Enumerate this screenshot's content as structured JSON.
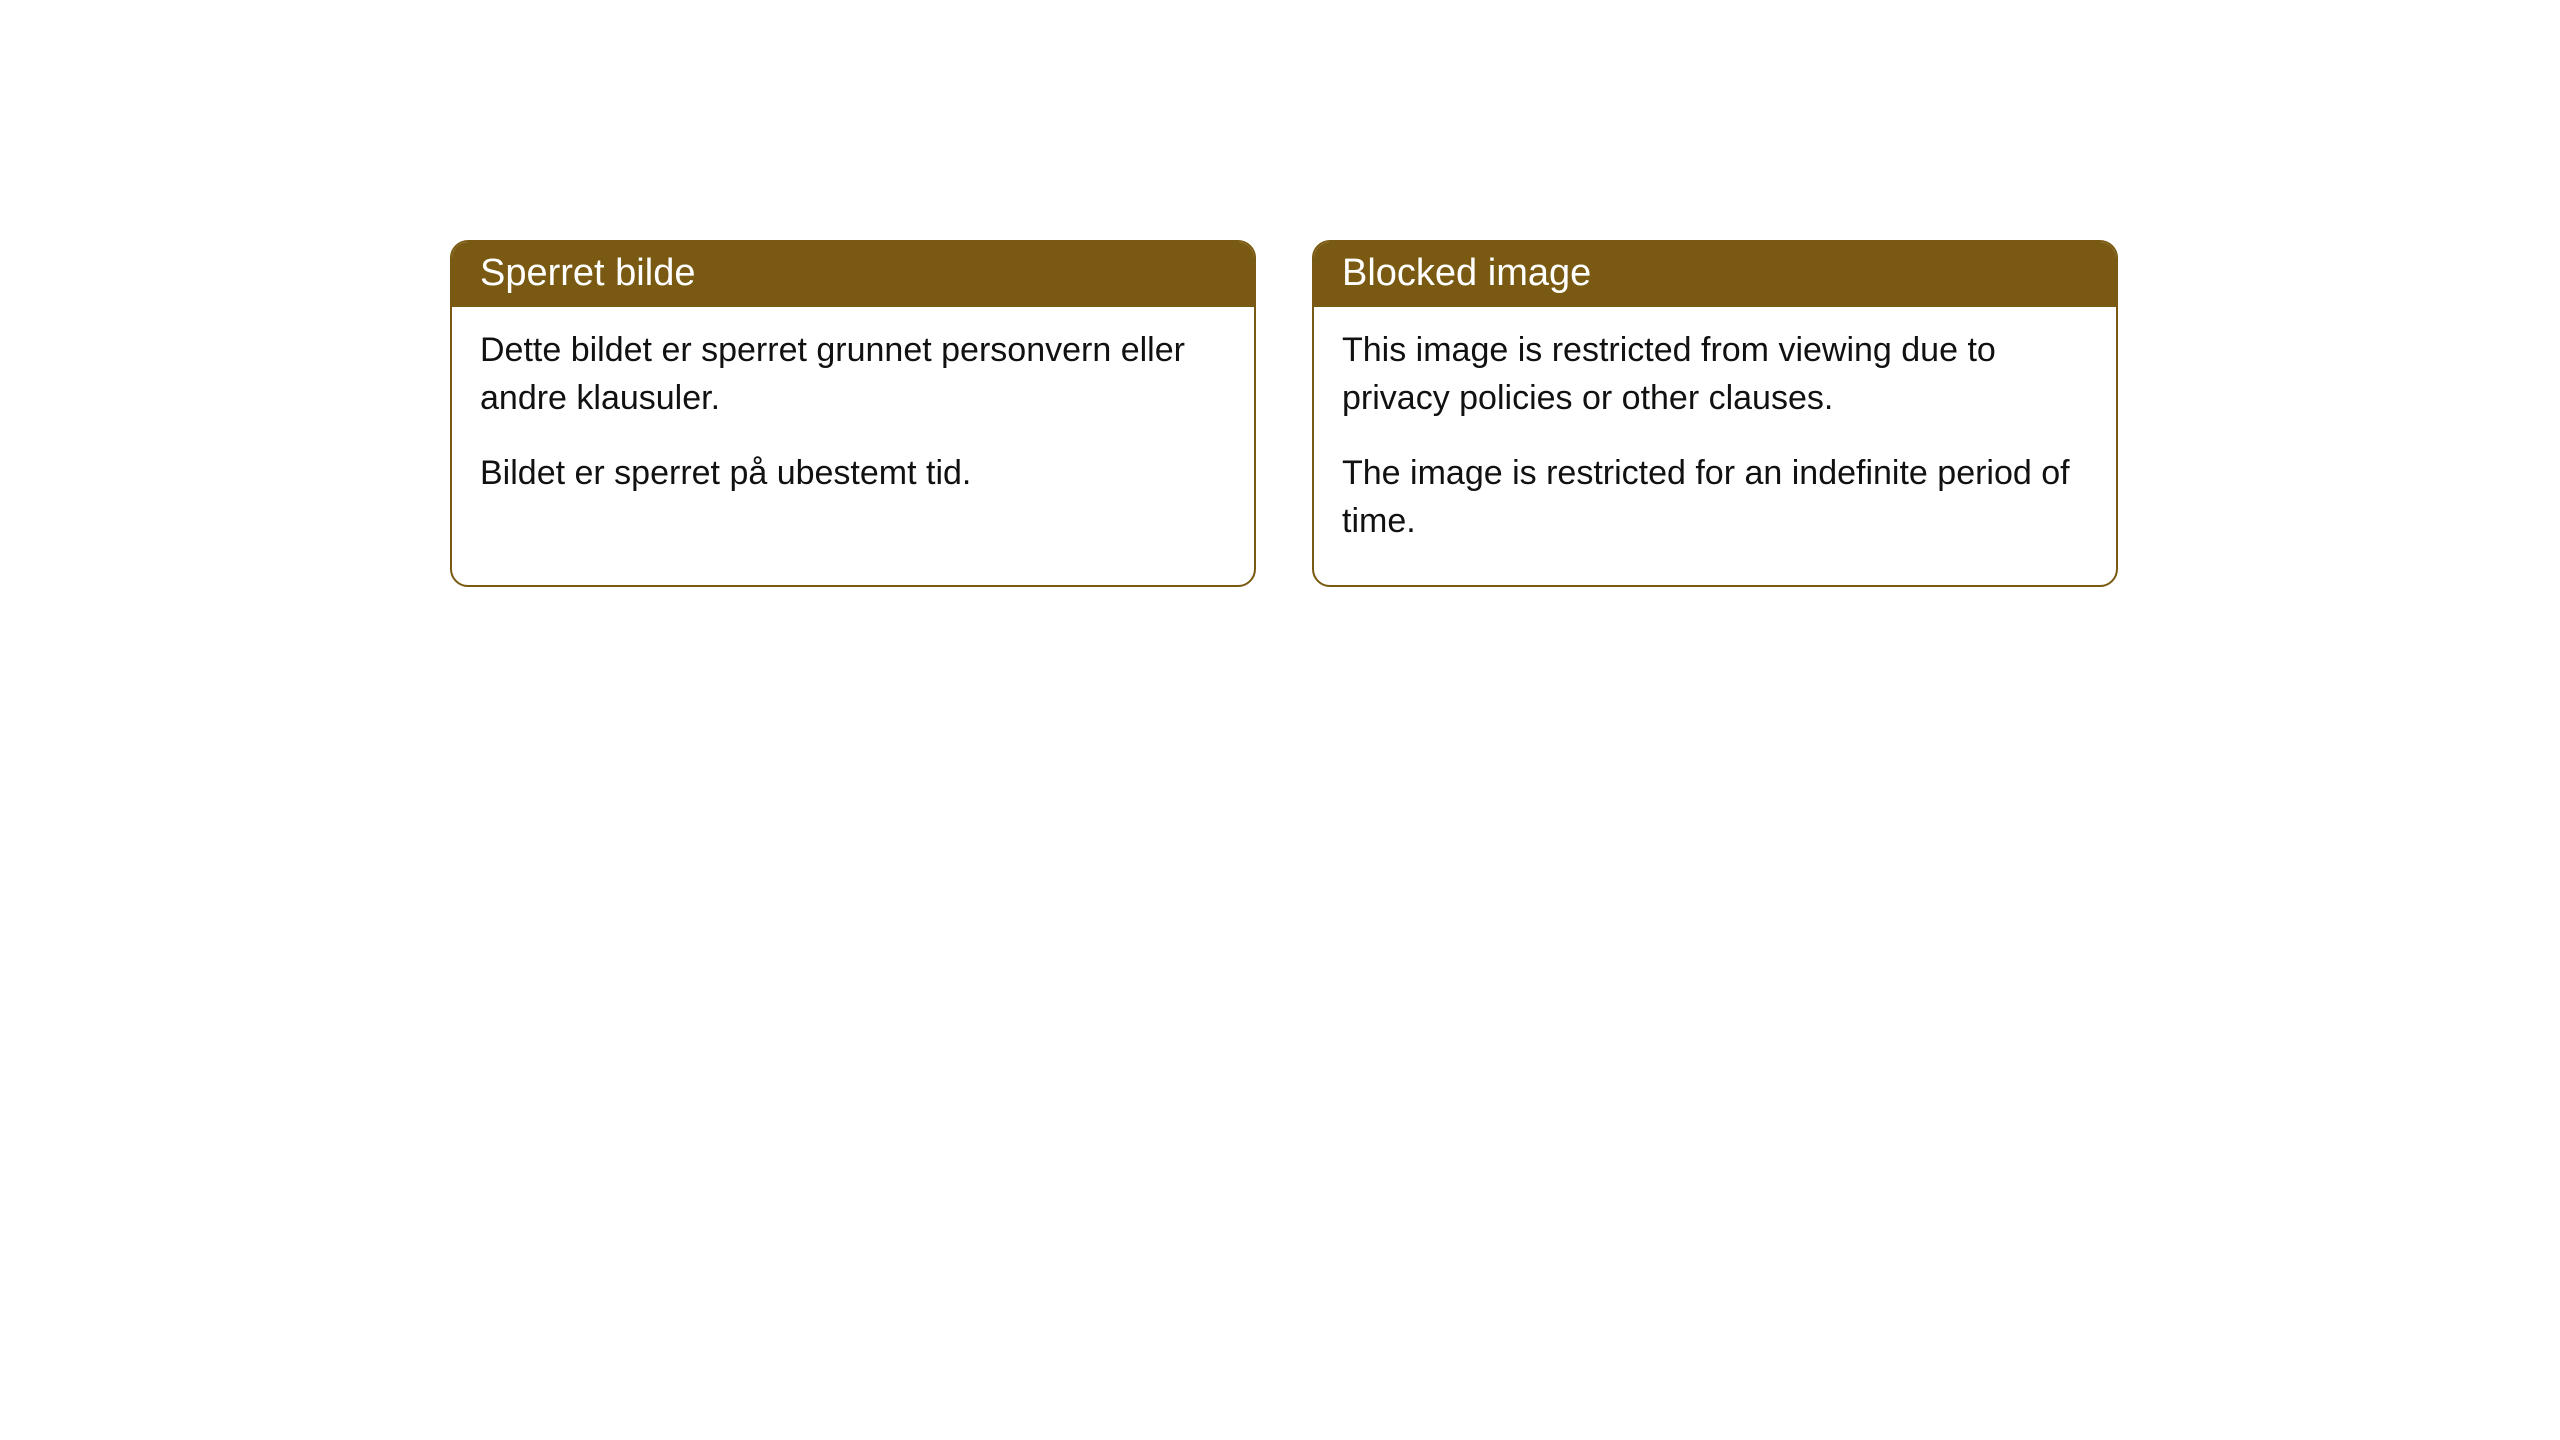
{
  "cards": [
    {
      "title": "Sperret bilde",
      "para1": "Dette bildet er sperret grunnet personvern eller andre klausuler.",
      "para2": "Bildet er sperret på ubestemt tid."
    },
    {
      "title": "Blocked image",
      "para1": "This image is restricted from viewing due to privacy policies or other clauses.",
      "para2": "The image is restricted for an indefinite period of time."
    }
  ],
  "style": {
    "header_bg": "#7a5a12",
    "header_text_color": "#ffffff",
    "border_color": "#7a5a12",
    "body_bg": "#ffffff",
    "body_text_color": "#111111",
    "border_radius": 18,
    "title_fontsize": 38,
    "body_fontsize": 34
  }
}
